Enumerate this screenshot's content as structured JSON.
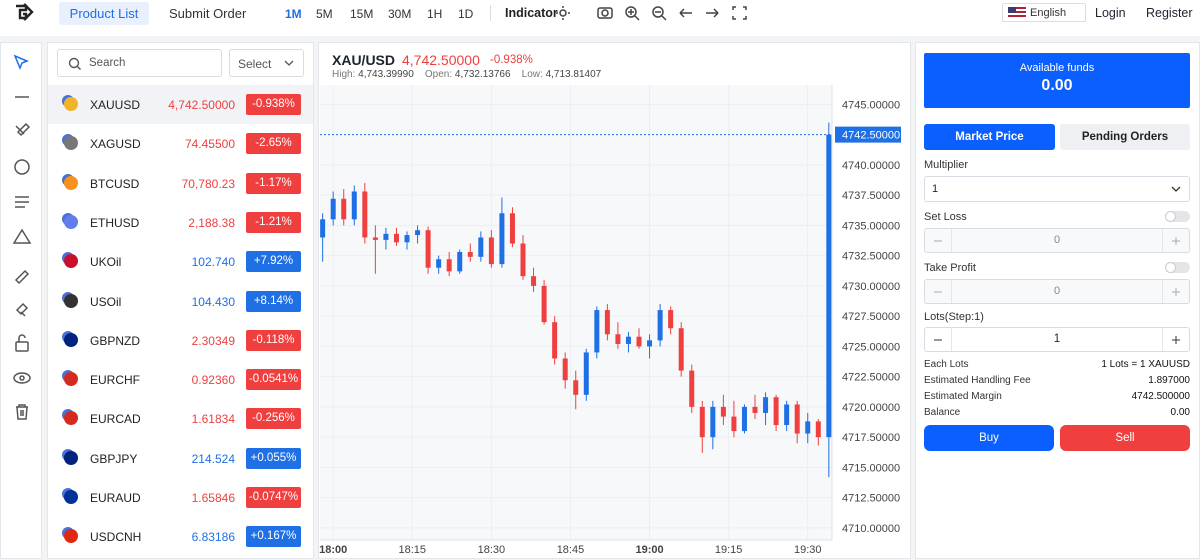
{
  "header": {
    "tabs": [
      "Product List",
      "Submit Order"
    ],
    "timeframes": [
      "1M",
      "5M",
      "15M",
      "30M",
      "1H",
      "1D"
    ],
    "indicator": "Indicator",
    "language": "English",
    "login": "Login",
    "register": "Register"
  },
  "products": {
    "search_placeholder": "Search",
    "select": "Select",
    "rows": [
      {
        "symbol": "XAUUSD",
        "price": "4,742.50000",
        "change": "-0.938%"
      },
      {
        "symbol": "XAGUSD",
        "price": "74.45500",
        "change": "-2.65%"
      },
      {
        "symbol": "BTCUSD",
        "price": "70,780.23",
        "change": "-1.17%"
      },
      {
        "symbol": "ETHUSD",
        "price": "2,188.38",
        "change": "-1.21%"
      },
      {
        "symbol": "UKOil",
        "price": "102.740",
        "change": "+7.92%"
      },
      {
        "symbol": "USOil",
        "price": "104.430",
        "change": "+8.14%"
      },
      {
        "symbol": "GBPNZD",
        "price": "2.30349",
        "change": "-0.118%"
      },
      {
        "symbol": "EURCHF",
        "price": "0.92360",
        "change": "-0.0541%"
      },
      {
        "symbol": "EURCAD",
        "price": "1.61834",
        "change": "-0.256%"
      },
      {
        "symbol": "GBPJPY",
        "price": "214.524",
        "change": "+0.055%"
      },
      {
        "symbol": "EURAUD",
        "price": "1.65846",
        "change": "-0.0747%"
      },
      {
        "symbol": "USDCNH",
        "price": "6.83186",
        "change": "+0.167%"
      }
    ]
  },
  "chart": {
    "type": "candlestick",
    "symbol": "XAU/USD",
    "price": "4,742.50000",
    "change": "-0.938%",
    "stats": [
      {
        "label": "High:",
        "value": "4,743.39990"
      },
      {
        "label": "Open:",
        "value": "4,732.13766"
      },
      {
        "label": "Low:",
        "value": "4,713.81407"
      }
    ],
    "up_color": "#1f6fe5",
    "down_color": "#ef3f3f",
    "last_price": {
      "value": 4742.5,
      "label": "4742.50000"
    },
    "xlim": [
      -2.5,
      94.6
    ],
    "xticks": [
      {
        "value": 0,
        "label": "18:00"
      },
      {
        "value": 15,
        "label": "18:15"
      },
      {
        "value": 30,
        "label": "18:30"
      },
      {
        "value": 45,
        "label": "18:45"
      },
      {
        "value": 60,
        "label": "19:00"
      },
      {
        "value": 75,
        "label": "19:15"
      },
      {
        "value": 90,
        "label": "19:30"
      }
    ],
    "ylim": [
      4709.0,
      4746.6
    ],
    "yticks": [
      {
        "value": 4710,
        "label": "4710.00000"
      },
      {
        "value": 4712.5,
        "label": "4712.50000"
      },
      {
        "value": 4715,
        "label": "4715.00000"
      },
      {
        "value": 4717.5,
        "label": "4717.50000"
      },
      {
        "value": 4720,
        "label": "4720.00000"
      },
      {
        "value": 4722.5,
        "label": "4722.50000"
      },
      {
        "value": 4725,
        "label": "4725.00000"
      },
      {
        "value": 4727.5,
        "label": "4727.50000"
      },
      {
        "value": 4730,
        "label": "4730.00000"
      },
      {
        "value": 4732.5,
        "label": "4732.50000"
      },
      {
        "value": 4735,
        "label": "4735.00000"
      },
      {
        "value": 4737.5,
        "label": "4737.50000"
      },
      {
        "value": 4740,
        "label": "4740.00000"
      },
      {
        "value": 4745,
        "label": "4745.00000"
      }
    ],
    "x": [
      -2,
      0,
      2,
      4,
      6,
      8,
      10,
      12,
      14,
      16,
      18,
      20,
      22,
      24,
      26,
      28,
      30,
      32,
      34,
      36,
      38,
      40,
      42,
      44,
      46,
      48,
      50,
      52,
      54,
      56,
      58,
      60,
      62,
      64,
      66,
      68,
      70,
      72,
      74,
      76,
      78,
      80,
      82,
      84,
      86,
      88,
      90,
      92,
      94
    ],
    "open": [
      4734.0,
      4735.5,
      4737.2,
      4735.5,
      4737.8,
      4734.0,
      4733.8,
      4734.3,
      4733.6,
      4734.2,
      4734.6,
      4731.5,
      4732.2,
      4731.2,
      4732.8,
      4732.4,
      4734.0,
      4731.8,
      4736.0,
      4733.5,
      4730.8,
      4730.0,
      4727.0,
      4724.0,
      4722.2,
      4721.0,
      4724.5,
      4728.0,
      4726.0,
      4725.2,
      4725.8,
      4725.0,
      4725.5,
      4728.0,
      4726.5,
      4723.0,
      4720.0,
      4717.5,
      4720.0,
      4719.2,
      4718.0,
      4720.0,
      4719.5,
      4720.8,
      4718.5,
      4720.2,
      4717.8,
      4718.8,
      4717.5
    ],
    "high": [
      4736.0,
      4737.8,
      4738.0,
      4738.3,
      4738.5,
      4735.0,
      4734.8,
      4734.8,
      4734.5,
      4735.0,
      4734.9,
      4732.5,
      4732.8,
      4733.0,
      4733.5,
      4734.5,
      4734.6,
      4737.3,
      4736.5,
      4734.2,
      4731.5,
      4730.5,
      4727.5,
      4724.5,
      4723.0,
      4724.8,
      4728.3,
      4728.5,
      4727.0,
      4726.2,
      4726.5,
      4726.0,
      4728.5,
      4728.3,
      4727.0,
      4723.5,
      4720.5,
      4720.5,
      4721.0,
      4720.5,
      4720.2,
      4721.0,
      4721.2,
      4721.0,
      4720.5,
      4720.5,
      4719.5,
      4719.0,
      4743.5
    ],
    "low": [
      4732.0,
      4735.0,
      4735.0,
      4735.0,
      4733.5,
      4731.0,
      4733.0,
      4733.3,
      4733.0,
      4733.5,
      4731.0,
      4731.0,
      4730.8,
      4731.0,
      4732.0,
      4732.0,
      4731.5,
      4731.5,
      4733.2,
      4730.5,
      4729.5,
      4726.8,
      4723.5,
      4721.5,
      4719.8,
      4720.5,
      4724.0,
      4725.5,
      4724.8,
      4724.5,
      4724.8,
      4724.0,
      4725.0,
      4726.0,
      4722.5,
      4719.5,
      4716.2,
      4716.5,
      4718.5,
      4717.5,
      4717.8,
      4719.0,
      4718.5,
      4718.0,
      4718.0,
      4717.0,
      4717.0,
      4716.8,
      4714.2
    ],
    "close": [
      4735.5,
      4737.2,
      4735.5,
      4737.8,
      4734.0,
      4733.8,
      4734.3,
      4733.6,
      4734.2,
      4734.6,
      4731.5,
      4732.2,
      4731.2,
      4732.8,
      4732.4,
      4734.0,
      4731.8,
      4736.0,
      4733.5,
      4730.8,
      4730.0,
      4727.0,
      4724.0,
      4722.2,
      4721.0,
      4724.5,
      4728.0,
      4726.0,
      4725.2,
      4725.8,
      4725.0,
      4725.5,
      4728.0,
      4726.5,
      4723.0,
      4720.0,
      4717.5,
      4720.0,
      4719.2,
      4718.0,
      4720.0,
      4719.5,
      4720.8,
      4718.5,
      4720.2,
      4717.8,
      4718.8,
      4717.5,
      4742.5
    ]
  },
  "order": {
    "available_label": "Available funds",
    "available": "0.00",
    "tabs": [
      "Market Price",
      "Pending Orders"
    ],
    "multiplier_label": "Multiplier",
    "multiplier": "1",
    "set_loss_label": "Set Loss",
    "set_loss": "0",
    "take_profit_label": "Take Profit",
    "take_profit": "0",
    "lots_label": "Lots(Step:1)",
    "lots": "1",
    "info": [
      [
        "Each Lots",
        "1 Lots = 1 XAUUSD"
      ],
      [
        "Estimated Handling Fee",
        "1.897000"
      ],
      [
        "Estimated Margin",
        "4742.500000"
      ],
      [
        "Balance",
        "0.00"
      ]
    ],
    "buy": "Buy",
    "sell": "Sell"
  }
}
